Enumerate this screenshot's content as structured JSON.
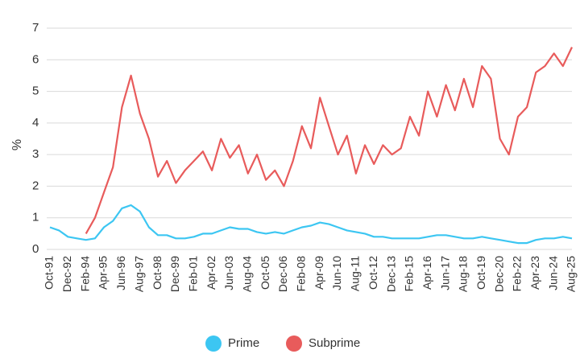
{
  "chart_data": {
    "type": "line",
    "ylabel": "%",
    "categories": [
      "Oct-91",
      null,
      "Dec-92",
      null,
      "Feb-94",
      null,
      "Apr-95",
      null,
      "Jun-96",
      null,
      "Aug-97",
      null,
      "Oct-98",
      null,
      "Dec-99",
      null,
      "Feb-01",
      null,
      "Apr-02",
      null,
      "Jun-03",
      null,
      "Aug-04",
      null,
      "Oct-05",
      null,
      "Dec-06",
      null,
      "Feb-08",
      null,
      "Apr-09",
      null,
      "Jun-10",
      null,
      "Aug-11",
      null,
      "Oct-12",
      null,
      "Dec-13",
      null,
      "Feb-15",
      null,
      "Apr-16",
      null,
      "Jun-17",
      null,
      "Aug-18",
      null,
      "Oct-19",
      null,
      "Dec-20",
      null,
      "Feb-22",
      null,
      "Apr-23",
      null,
      "Jun-24",
      null,
      "Aug-25"
    ],
    "series": [
      {
        "name": "Prime",
        "color": "#3cc6f2",
        "values": [
          0.7,
          0.6,
          0.4,
          0.35,
          0.3,
          0.35,
          0.7,
          0.9,
          1.3,
          1.4,
          1.2,
          0.7,
          0.45,
          0.45,
          0.35,
          0.35,
          0.4,
          0.5,
          0.5,
          0.6,
          0.7,
          0.65,
          0.65,
          0.55,
          0.5,
          0.55,
          0.5,
          0.6,
          0.7,
          0.75,
          0.85,
          0.8,
          0.7,
          0.6,
          0.55,
          0.5,
          0.4,
          0.4,
          0.35,
          0.35,
          0.35,
          0.35,
          0.4,
          0.45,
          0.45,
          0.4,
          0.35,
          0.35,
          0.4,
          0.35,
          0.3,
          0.25,
          0.2,
          0.2,
          0.3,
          0.35,
          0.35,
          0.4,
          0.35
        ]
      },
      {
        "name": "Subprime",
        "color": "#e85b5b",
        "values": [
          null,
          null,
          null,
          null,
          0.5,
          1.0,
          1.8,
          2.6,
          4.5,
          5.5,
          4.3,
          3.5,
          2.3,
          2.8,
          2.1,
          2.5,
          2.8,
          3.1,
          2.5,
          3.5,
          2.9,
          3.3,
          2.4,
          3.0,
          2.2,
          2.5,
          2.0,
          2.8,
          3.9,
          3.2,
          4.8,
          3.9,
          3.0,
          3.6,
          2.4,
          3.3,
          2.7,
          3.3,
          3.0,
          3.2,
          4.2,
          3.6,
          5.0,
          4.2,
          5.2,
          4.4,
          5.4,
          4.5,
          5.8,
          5.4,
          3.5,
          3.0,
          4.2,
          4.5,
          5.6,
          5.8,
          6.2,
          5.8,
          6.4
        ]
      }
    ],
    "ylim": [
      0,
      7
    ],
    "yticks": [
      0,
      1,
      2,
      3,
      4,
      5,
      6,
      7
    ],
    "grid": true,
    "legend": "bottom"
  }
}
